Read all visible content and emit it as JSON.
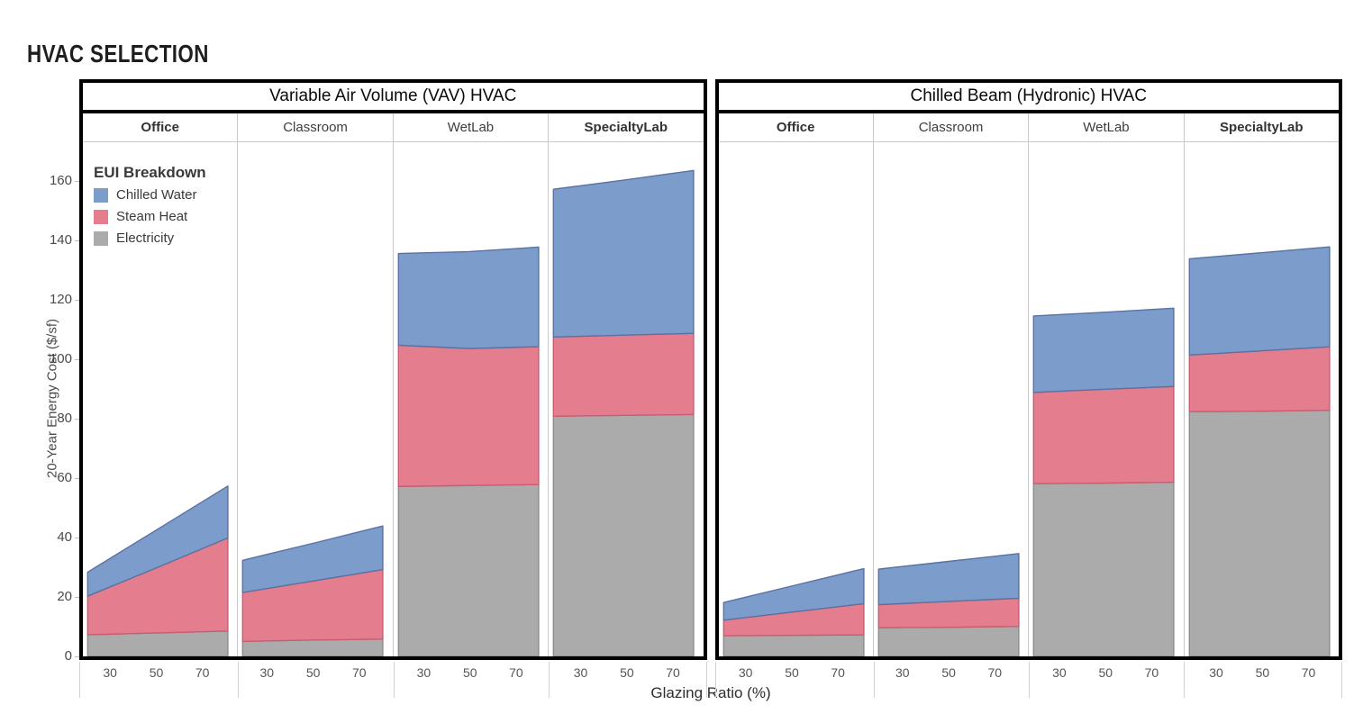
{
  "page_title": "HVAC SELECTION",
  "chart_data": {
    "type": "area",
    "stacked": true,
    "x": [
      30,
      50,
      70
    ],
    "xlabel": "Glazing Ratio (%)",
    "ylabel": "20-Year Energy Cost ($/sf)",
    "ylim": [
      0,
      173
    ],
    "yticks": [
      0,
      20,
      40,
      60,
      80,
      100,
      120,
      140,
      160
    ],
    "grid": false,
    "legend": {
      "title": "EUI Breakdown",
      "position": "top-left-inside",
      "entries": [
        {
          "label": "Chilled Water",
          "color": "#7C9DCB"
        },
        {
          "label": "Steam Heat",
          "color": "#E47E8E"
        },
        {
          "label": "Electricity",
          "color": "#ABABAB"
        }
      ]
    },
    "series_order_bottom_to_top": [
      "Electricity",
      "Steam Heat",
      "Chilled Water"
    ],
    "series_colors": {
      "Electricity": {
        "fill": "#ABABAB",
        "stroke": "#8C8C8C"
      },
      "Steam Heat": {
        "fill": "#E47E8E",
        "stroke": "#C95C72"
      },
      "Chilled Water": {
        "fill": "#7C9DCB",
        "stroke": "#5A71A2"
      }
    },
    "panels": [
      {
        "title": "Variable Air Volume (VAV) HVAC",
        "groups": [
          {
            "label": "Office",
            "series": {
              "Electricity": [
                7.5,
                7.9,
                8.3
              ],
              "Steam Heat": [
                16.3,
                22.2,
                28.2
              ],
              "Chilled Water": [
                9.8,
                12.9,
                15.9
              ]
            }
          },
          {
            "label": "Classroom",
            "series": {
              "Electricity": [
                5.2,
                5.5,
                5.7
              ],
              "Steam Heat": [
                17.7,
                19.9,
                22.2
              ],
              "Chilled Water": [
                11.5,
                12.7,
                14.0
              ]
            }
          },
          {
            "label": "WetLab",
            "series": {
              "Electricity": [
                57.3,
                57.5,
                57.7
              ],
              "Steam Heat": [
                47.0,
                46.1,
                46.3
              ],
              "Chilled Water": [
                31.5,
                32.6,
                33.2
              ]
            }
          },
          {
            "label": "SpecialtyLab",
            "series": {
              "Electricity": [
                80.9,
                81.1,
                81.3
              ],
              "Steam Heat": [
                26.8,
                27.0,
                27.2
              ],
              "Chilled Water": [
                50.6,
                52.2,
                53.9
              ]
            }
          }
        ]
      },
      {
        "title": "Chilled Beam (Hydronic) HVAC",
        "groups": [
          {
            "label": "Office",
            "series": {
              "Electricity": [
                7.0,
                7.1,
                7.2
              ],
              "Steam Heat": [
                6.2,
                7.9,
                9.6
              ],
              "Chilled Water": [
                7.0,
                8.9,
                10.8
              ]
            }
          },
          {
            "label": "Classroom",
            "series": {
              "Electricity": [
                9.7,
                9.8,
                10.0
              ],
              "Steam Heat": [
                8.1,
                8.7,
                9.2
              ],
              "Chilled Water": [
                12.5,
                13.5,
                14.5
              ]
            }
          },
          {
            "label": "WetLab",
            "series": {
              "Electricity": [
                58.2,
                58.3,
                58.5
              ],
              "Steam Heat": [
                31.0,
                31.6,
                32.0
              ],
              "Chilled Water": [
                25.8,
                25.9,
                26.2
              ]
            }
          },
          {
            "label": "SpecialtyLab",
            "series": {
              "Electricity": [
                82.4,
                82.5,
                82.7
              ],
              "Steam Heat": [
                19.5,
                20.3,
                21.0
              ],
              "Chilled Water": [
                32.6,
                33.0,
                33.4
              ]
            }
          }
        ]
      }
    ]
  }
}
